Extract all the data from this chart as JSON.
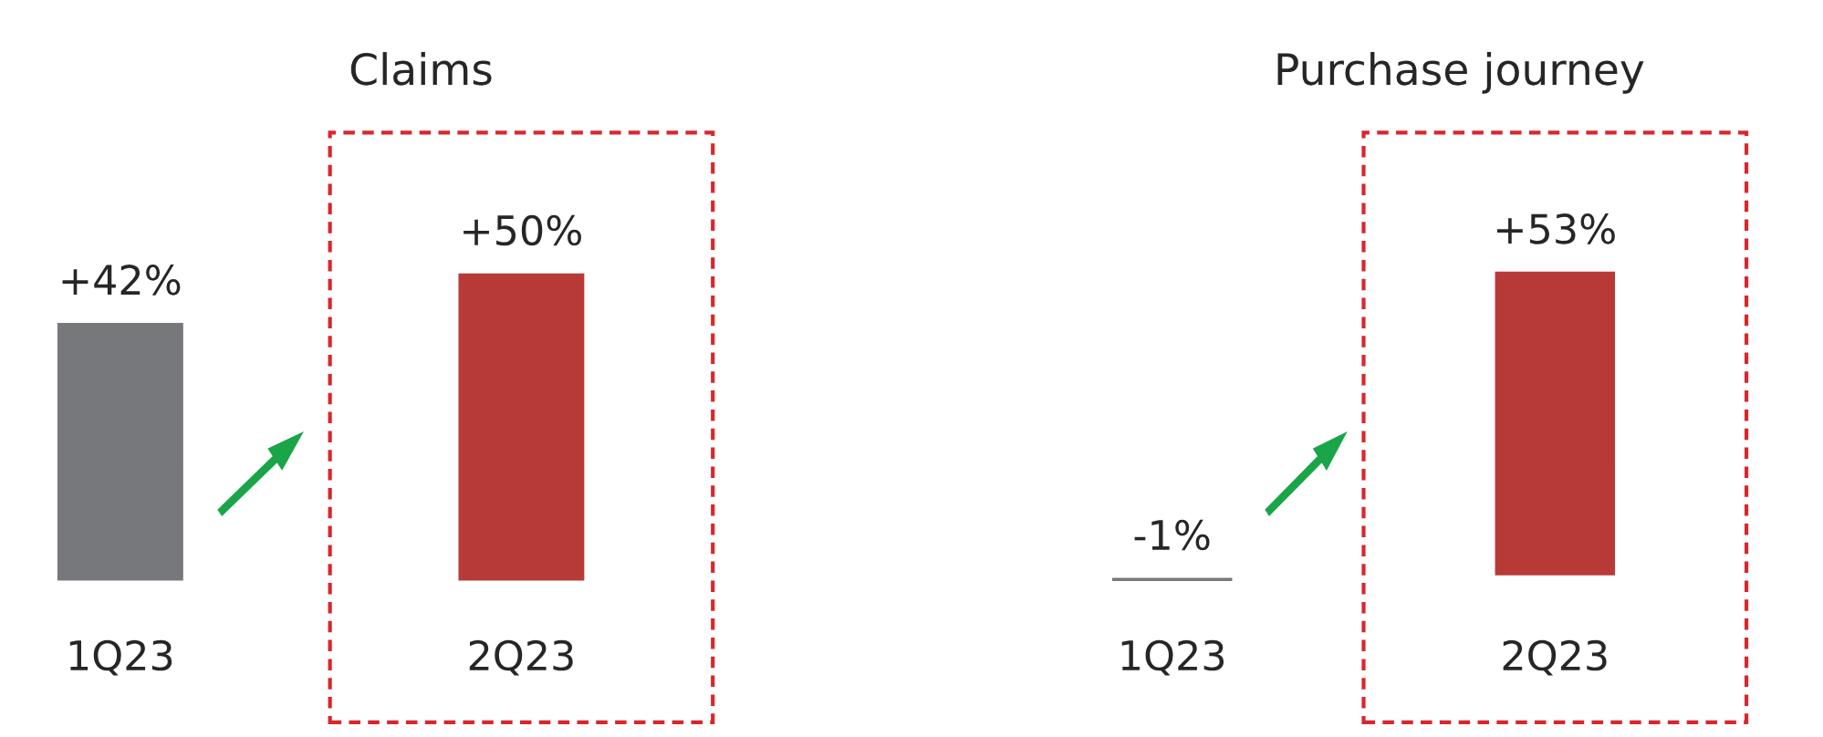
{
  "chart_data": [
    {
      "type": "bar",
      "title": "Claims",
      "categories": [
        "1Q23",
        "2Q23"
      ],
      "values": [
        42,
        50
      ],
      "colors": [
        "#77787b",
        "#b83a37"
      ],
      "value_labels": [
        "+42%",
        "+50%"
      ],
      "tick_labels": "x"
    },
    {
      "type": "bar",
      "title": "Purchase journey",
      "categories": [
        "1Q23",
        "2Q23"
      ],
      "values": [
        -1,
        53
      ],
      "colors": [
        "#77787b",
        "#b83a37"
      ],
      "value_labels": [
        "-1%",
        "+53%"
      ],
      "tick_labels": "x"
    }
  ]
}
